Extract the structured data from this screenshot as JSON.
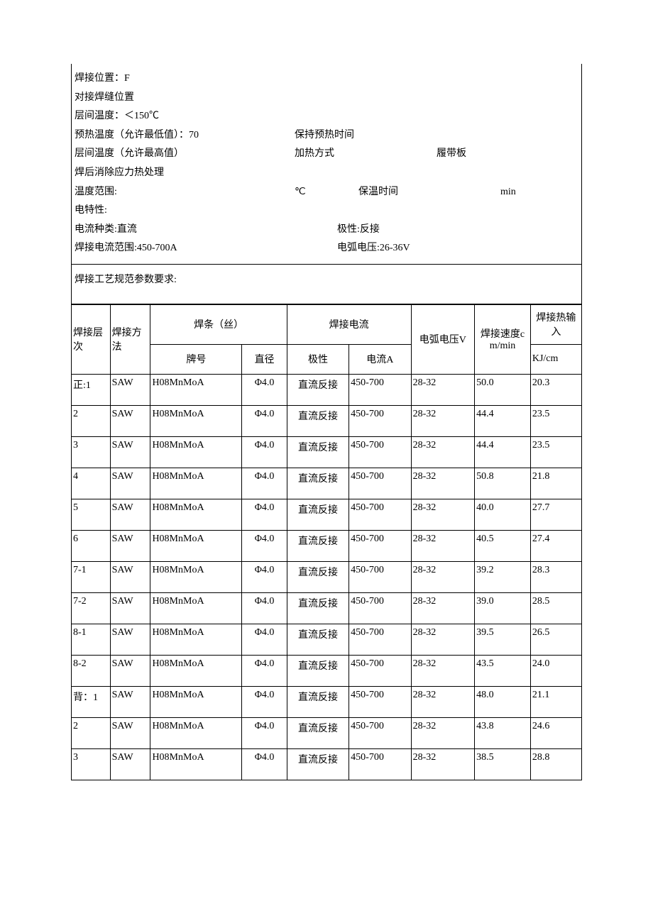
{
  "info": {
    "weld_position_label": "焊接位置：F",
    "butt_position_label": "对接焊缝位置",
    "interlayer_temp_label": "层间温度：＜150℃",
    "preheat_temp_label": "预热温度（允许最低值）：70",
    "preheat_hold_label": "保持预热时间",
    "interlayer_max_label": "层间温度（允许最高值）",
    "heating_method_label": "加热方式",
    "heating_method_value": "履带板",
    "pwht_label": "焊后消除应力热处理",
    "temp_range_label": "温度范围:",
    "temp_unit": "℃",
    "hold_time_label": "保温时间",
    "hold_time_unit": "min",
    "elec_label": "电特性:",
    "current_type_label": "电流种类:直流",
    "polarity_label": "极性:反接",
    "weld_current_range_label": "焊接电流范围:450-700A",
    "arc_voltage_label": "电弧电压:26-36V"
  },
  "section_title": "焊接工艺规范参数要求:",
  "table": {
    "headers": {
      "layer": "焊接层次",
      "method": "焊接方法",
      "wire_group": "焊条（丝）",
      "brand": "牌号",
      "diameter": "直径",
      "current_group": "焊接电流",
      "polarity": "极性",
      "current": "电流A",
      "voltage": "电弧电压V",
      "speed": "焊接速度cm/min",
      "heat_group": "焊接热输入",
      "heat_unit": "KJ/cm"
    },
    "rows": [
      {
        "layer": "正:1",
        "method": "SAW",
        "brand": "H08MnMoA",
        "dia": "Φ4.0",
        "pol": "直流反接",
        "cur": "450-700",
        "volt": "28-32",
        "speed": "50.0",
        "heat": "20.3"
      },
      {
        "layer": "2",
        "method": "SAW",
        "brand": "H08MnMoA",
        "dia": "Φ4.0",
        "pol": "直流反接",
        "cur": "450-700",
        "volt": "28-32",
        "speed": "44.4",
        "heat": "23.5"
      },
      {
        "layer": "3",
        "method": "SAW",
        "brand": "H08MnMoA",
        "dia": "Φ4.0",
        "pol": "直流反接",
        "cur": "450-700",
        "volt": "28-32",
        "speed": "44.4",
        "heat": "23.5"
      },
      {
        "layer": "4",
        "method": "SAW",
        "brand": "H08MnMoA",
        "dia": "Φ4.0",
        "pol": "直流反接",
        "cur": "450-700",
        "volt": "28-32",
        "speed": "50.8",
        "heat": "21.8"
      },
      {
        "layer": "5",
        "method": "SAW",
        "brand": "H08MnMoA",
        "dia": "Φ4.0",
        "pol": "直流反接",
        "cur": "450-700",
        "volt": "28-32",
        "speed": "40.0",
        "heat": "27.7"
      },
      {
        "layer": "6",
        "method": "SAW",
        "brand": "H08MnMoA",
        "dia": "Φ4.0",
        "pol": "直流反接",
        "cur": "450-700",
        "volt": "28-32",
        "speed": "40.5",
        "heat": "27.4"
      },
      {
        "layer": "7-1",
        "method": "SAW",
        "brand": "H08MnMoA",
        "dia": "Φ4.0",
        "pol": "直流反接",
        "cur": "450-700",
        "volt": "28-32",
        "speed": "39.2",
        "heat": "28.3"
      },
      {
        "layer": "7-2",
        "method": "SAW",
        "brand": "H08MnMoA",
        "dia": "Φ4.0",
        "pol": "直流反接",
        "cur": "450-700",
        "volt": "28-32",
        "speed": "39.0",
        "heat": "28.5"
      },
      {
        "layer": "8-1",
        "method": "SAW",
        "brand": "H08MnMoA",
        "dia": "Φ4.0",
        "pol": "直流反接",
        "cur": "450-700",
        "volt": "28-32",
        "speed": "39.5",
        "heat": "26.5"
      },
      {
        "layer": "8-2",
        "method": "SAW",
        "brand": "H08MnMoA",
        "dia": "Φ4.0",
        "pol": "直流反接",
        "cur": "450-700",
        "volt": "28-32",
        "speed": "43.5",
        "heat": "24.0"
      },
      {
        "layer": "背：1",
        "method": "SAW",
        "brand": "H08MnMoA",
        "dia": "Φ4.0",
        "pol": "直流反接",
        "cur": "450-700",
        "volt": "28-32",
        "speed": "48.0",
        "heat": "21.1"
      },
      {
        "layer": "2",
        "method": "SAW",
        "brand": "H08MnMoA",
        "dia": "Φ4.0",
        "pol": "直流反接",
        "cur": "450-700",
        "volt": "28-32",
        "speed": "43.8",
        "heat": "24.6"
      },
      {
        "layer": "3",
        "method": "SAW",
        "brand": "H08MnMoA",
        "dia": "Φ4.0",
        "pol": "直流反接",
        "cur": "450-700",
        "volt": "28-32",
        "speed": "38.5",
        "heat": "28.8"
      }
    ]
  }
}
